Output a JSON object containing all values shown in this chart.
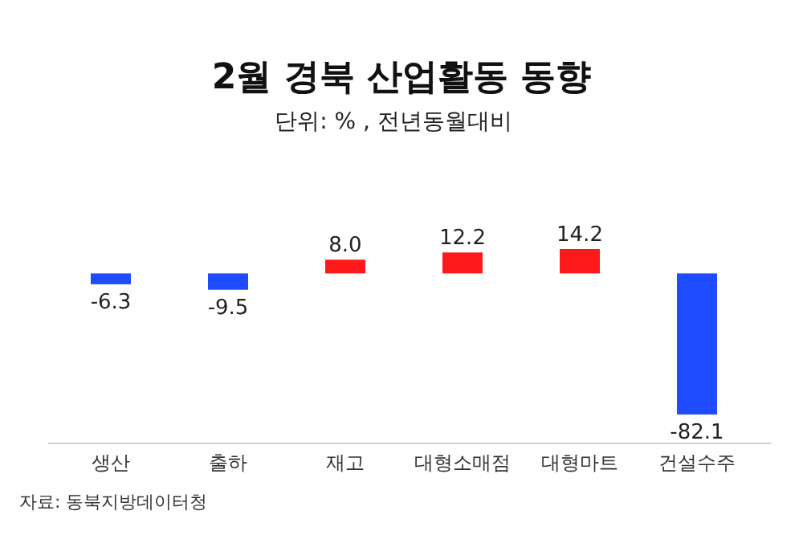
{
  "chart_data": {
    "type": "bar",
    "title": "2월 경북 산업활동 동향",
    "subtitle": "단위: % , 전년동월대비",
    "categories": [
      "생산",
      "출하",
      "재고",
      "대형소매점",
      "대형마트",
      "건설수주"
    ],
    "values": [
      -6.3,
      -9.5,
      8.0,
      12.2,
      14.2,
      -82.1
    ],
    "colors": [
      "#1f4cff",
      "#1f4cff",
      "#ff1a1a",
      "#ff1a1a",
      "#ff1a1a",
      "#1f4cff"
    ],
    "value_labels": [
      "-6.3",
      "-9.5",
      "8.0",
      "12.2",
      "14.2",
      "-82.1"
    ],
    "annotations": [
      "자료: 동북지방데이터청"
    ]
  }
}
